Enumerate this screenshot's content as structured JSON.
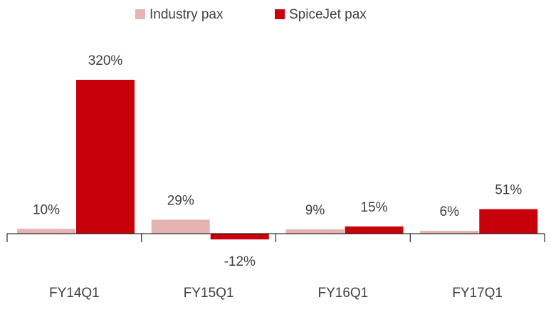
{
  "chart_data": {
    "type": "bar",
    "categories": [
      "FY14Q1",
      "FY15Q1",
      "FY16Q1",
      "FY17Q1"
    ],
    "series": [
      {
        "name": "Industry pax",
        "color": "#e6b3b3",
        "values": [
          10,
          29,
          9,
          6
        ],
        "value_labels": [
          "10%",
          "29%",
          "9%",
          "6%"
        ]
      },
      {
        "name": "SpiceJet pax",
        "color": "#c8000a",
        "values": [
          320,
          -12,
          15,
          51
        ],
        "value_labels": [
          "320%",
          "-12%",
          "15%",
          "51%"
        ]
      }
    ],
    "legend": "top",
    "grid": false
  }
}
